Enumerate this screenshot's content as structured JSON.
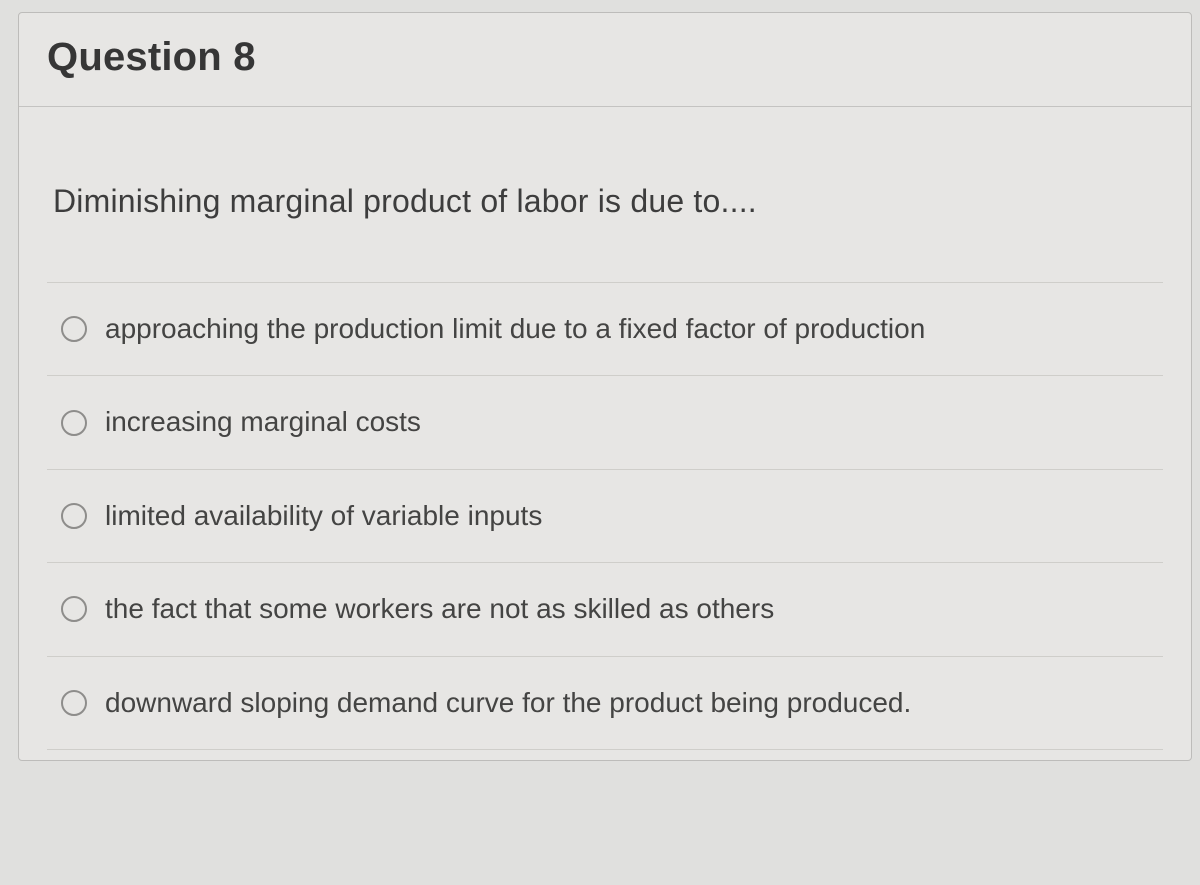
{
  "question": {
    "title": "Question 8",
    "prompt": "Diminishing marginal product of labor is due to....",
    "options": [
      {
        "label": "approaching the production limit due to a fixed factor of production"
      },
      {
        "label": "increasing marginal costs"
      },
      {
        "label": "limited availability of variable inputs"
      },
      {
        "label": "the fact that some workers are not as skilled as others"
      },
      {
        "label": "downward sloping demand curve for the product being produced."
      }
    ]
  },
  "colors": {
    "page_bg": "#e0e0de",
    "card_bg": "#e7e6e4",
    "card_border": "#bdbcba",
    "divider": "#cfceca",
    "text": "#3b3b3b",
    "radio_border": "#8e8d8b"
  }
}
